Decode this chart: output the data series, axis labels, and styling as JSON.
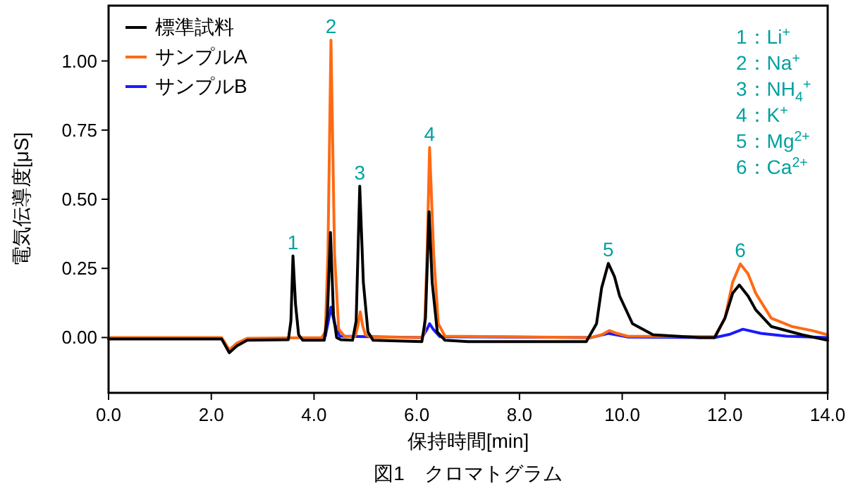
{
  "chart_data": {
    "type": "line",
    "title": "図1　クロマトグラム",
    "xlabel": "保持時間[min]",
    "ylabel": "電気伝導度[μS]",
    "xlim": [
      0,
      14
    ],
    "ylim": [
      -0.2,
      1.2
    ],
    "xticks": [
      {
        "value": 0,
        "label": "0.0"
      },
      {
        "value": 2,
        "label": "2.0"
      },
      {
        "value": 4,
        "label": "4.0"
      },
      {
        "value": 6,
        "label": "6.0"
      },
      {
        "value": 8,
        "label": "8.0"
      },
      {
        "value": 10,
        "label": "10.0"
      },
      {
        "value": 12,
        "label": "12.0"
      },
      {
        "value": 14,
        "label": "14.0"
      }
    ],
    "yticks": [
      {
        "value": 0,
        "label": "0.00"
      },
      {
        "value": 0.25,
        "label": "0.25"
      },
      {
        "value": 0.5,
        "label": "0.50"
      },
      {
        "value": 0.75,
        "label": "0.75"
      },
      {
        "value": 1,
        "label": "1.00"
      }
    ],
    "legend": "top left",
    "grid": false,
    "marker": "none",
    "line_style": "solid",
    "series": [
      {
        "name": "標準試料",
        "color": "#000000",
        "x": [
          0,
          2.2,
          2.35,
          2.5,
          2.7,
          3.5,
          3.55,
          3.59,
          3.64,
          3.7,
          3.78,
          4.2,
          4.26,
          4.32,
          4.38,
          4.44,
          4.52,
          4.75,
          4.82,
          4.89,
          4.96,
          5.05,
          5.15,
          6.1,
          6.17,
          6.24,
          6.3,
          6.4,
          6.55,
          7,
          9.3,
          9.5,
          9.6,
          9.73,
          9.85,
          9.95,
          10.2,
          10.6,
          11.5,
          11.8,
          12.0,
          12.15,
          12.28,
          12.45,
          12.6,
          12.9,
          13.5,
          14
        ],
        "values": [
          -0.005,
          -0.005,
          -0.055,
          -0.03,
          -0.01,
          -0.008,
          0.06,
          0.295,
          0.12,
          0.01,
          -0.01,
          -0.01,
          0.08,
          0.38,
          0.08,
          0.0,
          -0.008,
          -0.01,
          0.06,
          0.547,
          0.2,
          0.02,
          -0.01,
          -0.015,
          0.07,
          0.455,
          0.2,
          0.02,
          -0.01,
          -0.015,
          -0.015,
          0.05,
          0.18,
          0.268,
          0.22,
          0.15,
          0.05,
          0.01,
          0.0,
          0.0,
          0.07,
          0.16,
          0.19,
          0.15,
          0.1,
          0.04,
          0.01,
          -0.01
        ]
      },
      {
        "name": "サンプルA",
        "color": "#ff6a13",
        "x": [
          0,
          2.2,
          2.35,
          2.5,
          2.7,
          4.15,
          4.22,
          4.27,
          4.33,
          4.4,
          4.48,
          4.6,
          4.8,
          4.85,
          4.9,
          4.95,
          5.0,
          5.1,
          6.1,
          6.15,
          6.2,
          6.25,
          6.33,
          6.42,
          6.55,
          9.4,
          9.6,
          9.75,
          9.9,
          10.1,
          11.8,
          12.0,
          12.15,
          12.3,
          12.45,
          12.6,
          12.9,
          13.3,
          13.7,
          14
        ],
        "values": [
          0,
          0,
          -0.045,
          -0.02,
          -0.003,
          0,
          0.02,
          0.3,
          1.075,
          0.3,
          0.03,
          0.003,
          0.005,
          0.04,
          0.093,
          0.04,
          0.01,
          0.002,
          0,
          0.02,
          0.3,
          0.687,
          0.3,
          0.05,
          0.005,
          0,
          0.01,
          0.025,
          0.015,
          0.005,
          0.003,
          0.07,
          0.2,
          0.266,
          0.23,
          0.16,
          0.07,
          0.04,
          0.025,
          0.01
        ]
      },
      {
        "name": "サンプルB",
        "color": "#1a1aff",
        "x": [
          4.15,
          4.22,
          4.28,
          4.33,
          4.4,
          4.5,
          6.1,
          6.2,
          6.25,
          6.32,
          6.45,
          9.4,
          9.73,
          10.1,
          11.8,
          12.1,
          12.35,
          12.7,
          13.2,
          14
        ],
        "values": [
          0,
          0.005,
          0.06,
          0.11,
          0.05,
          0.005,
          0,
          0.03,
          0.05,
          0.03,
          0.003,
          0,
          0.015,
          0.002,
          0,
          0.012,
          0.03,
          0.015,
          0.005,
          0
        ]
      }
    ],
    "annotations": [
      {
        "text": "1",
        "x": 3.59,
        "y": 0.295
      },
      {
        "text": "2",
        "x": 4.33,
        "y": 1.075
      },
      {
        "text": "3",
        "x": 4.89,
        "y": 0.547
      },
      {
        "text": "4",
        "x": 6.25,
        "y": 0.687
      },
      {
        "text": "5",
        "x": 9.73,
        "y": 0.268
      },
      {
        "text": "6",
        "x": 12.3,
        "y": 0.266
      },
      "1：Li$^{+}$",
      "2：Na$^{+}$",
      "3：NH$_{4}$$^{+}$",
      "4：K$^{+}$",
      "5：Mg$^{2+}$",
      "6：Ca$^{2+}$"
    ]
  }
}
